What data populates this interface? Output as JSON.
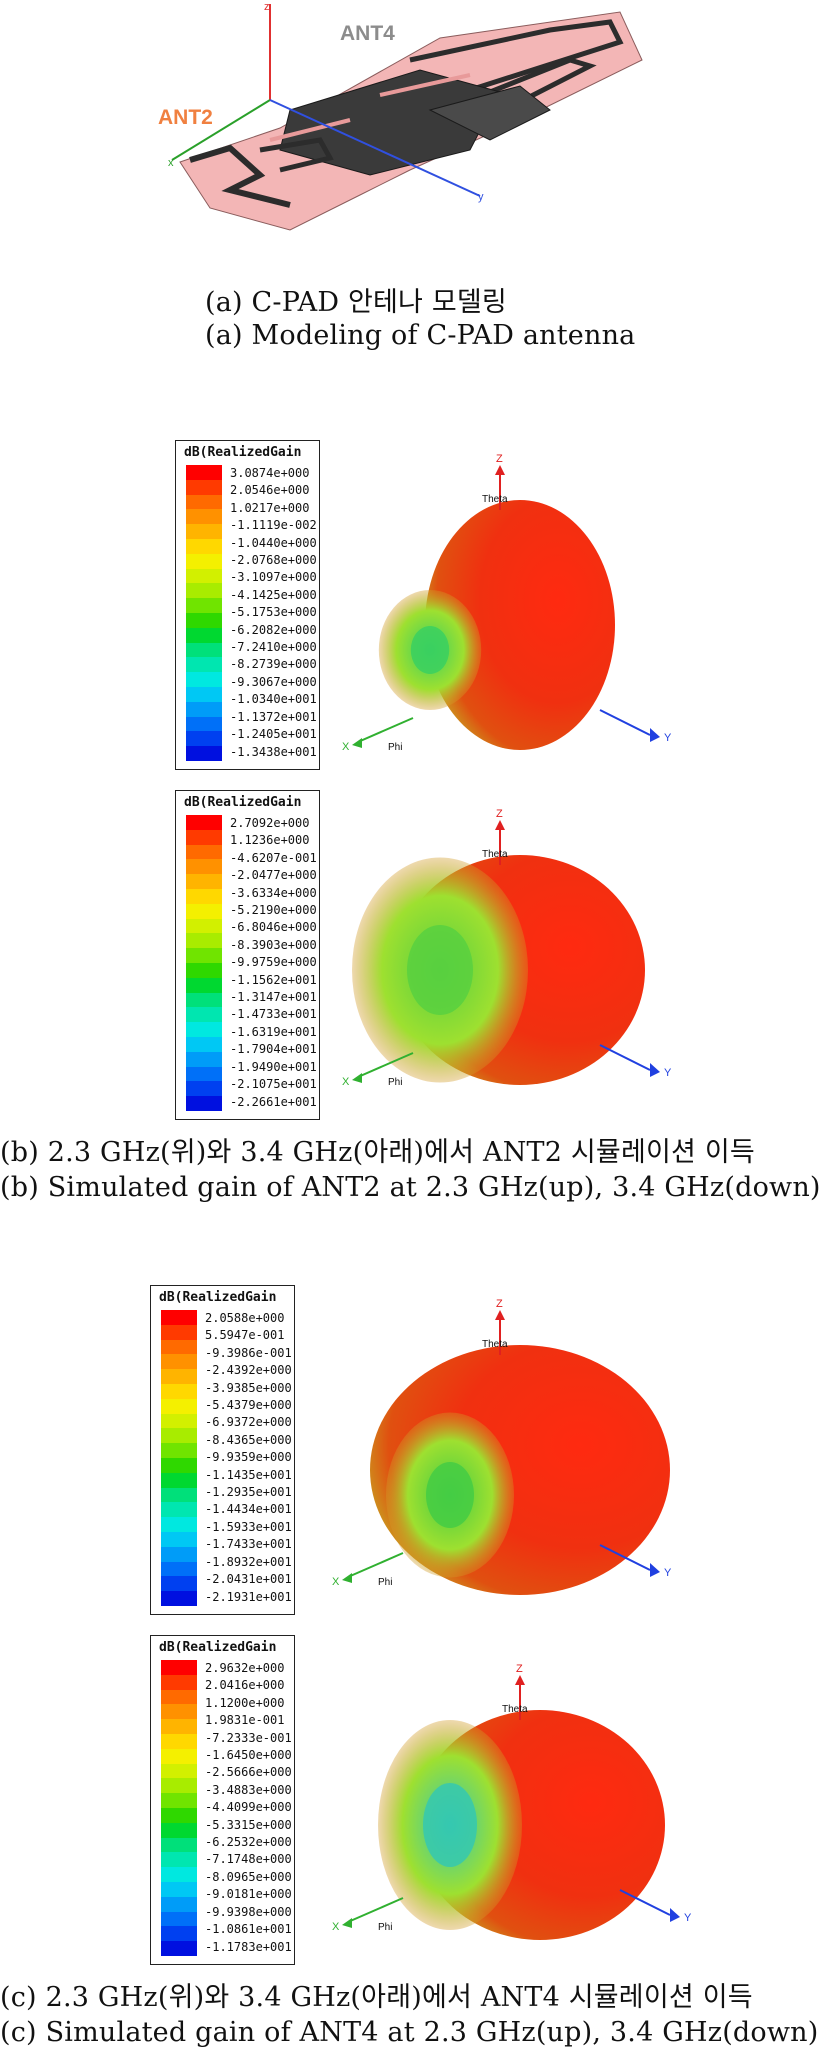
{
  "figure_a": {
    "ant4_label": "ANT4",
    "ant2_label": "ANT2",
    "axis_z": "z",
    "axis_x": "x",
    "axis_y": "y",
    "caption_ko": "(a)  C-PAD  안테나  모델링",
    "caption_en": "(a)  Modeling  of  C-PAD  antenna"
  },
  "legend_colors": [
    "#ff0000",
    "#ff3a00",
    "#ff6a00",
    "#ff9100",
    "#ffb400",
    "#ffd800",
    "#f4f000",
    "#d2f000",
    "#a8ec00",
    "#70e400",
    "#2fd800",
    "#00d830",
    "#00e07a",
    "#00e6b0",
    "#00e8e0",
    "#00c8f4",
    "#009cf8",
    "#0070f8",
    "#0040f0",
    "#0010e0"
  ],
  "panels": [
    {
      "legend_title": "dB(RealizedGain",
      "values": [
        "3.0874e+000",
        "2.0546e+000",
        "1.0217e+000",
        "-1.1119e-002",
        "-1.0440e+000",
        "-2.0768e+000",
        "-3.1097e+000",
        "-4.1425e+000",
        "-5.1753e+000",
        "-6.2082e+000",
        "-7.2410e+000",
        "-8.2739e+000",
        "-9.3067e+000",
        "-1.0340e+001",
        "-1.1372e+001",
        "-1.2405e+001",
        "-1.3438e+001"
      ],
      "axis_z": "Z",
      "axis_y": "Y",
      "axis_x": "X",
      "theta": "Theta",
      "phi": "Phi"
    },
    {
      "legend_title": "dB(RealizedGain",
      "values": [
        "2.7092e+000",
        "1.1236e+000",
        "-4.6207e-001",
        "-2.0477e+000",
        "-3.6334e+000",
        "-5.2190e+000",
        "-6.8046e+000",
        "-8.3903e+000",
        "-9.9759e+000",
        "-1.1562e+001",
        "-1.3147e+001",
        "-1.4733e+001",
        "-1.6319e+001",
        "-1.7904e+001",
        "-1.9490e+001",
        "-2.1075e+001",
        "-2.2661e+001"
      ],
      "axis_z": "Z",
      "axis_y": "Y",
      "axis_x": "X",
      "theta": "Theta",
      "phi": "Phi"
    },
    {
      "legend_title": "dB(RealizedGain",
      "values": [
        "2.0588e+000",
        "5.5947e-001",
        "-9.3986e-001",
        "-2.4392e+000",
        "-3.9385e+000",
        "-5.4379e+000",
        "-6.9372e+000",
        "-8.4365e+000",
        "-9.9359e+000",
        "-1.1435e+001",
        "-1.2935e+001",
        "-1.4434e+001",
        "-1.5933e+001",
        "-1.7433e+001",
        "-1.8932e+001",
        "-2.0431e+001",
        "-2.1931e+001"
      ],
      "axis_z": "Z",
      "axis_y": "Y",
      "axis_x": "X",
      "theta": "Theta",
      "phi": "Phi"
    },
    {
      "legend_title": "dB(RealizedGain",
      "values": [
        "2.9632e+000",
        "2.0416e+000",
        "1.1200e+000",
        "1.9831e-001",
        "-7.2333e-001",
        "-1.6450e+000",
        "-2.5666e+000",
        "-3.4883e+000",
        "-4.4099e+000",
        "-5.3315e+000",
        "-6.2532e+000",
        "-7.1748e+000",
        "-8.0965e+000",
        "-9.0181e+000",
        "-9.9398e+000",
        "-1.0861e+001",
        "-1.1783e+001"
      ],
      "axis_z": "Z",
      "axis_y": "Y",
      "axis_x": "X",
      "theta": "Theta",
      "phi": "Phi"
    }
  ],
  "captions": {
    "b_ko": "(b)  2.3  GHz(위)와  3.4  GHz(아래)에서  ANT2  시뮬레이션  이득",
    "b_en": "(b)  Simulated  gain  of  ANT2  at  2.3  GHz(up),  3.4  GHz(down)",
    "c_ko": "(c)  2.3  GHz(위)와  3.4  GHz(아래)에서  ANT4  시뮬레이션  이득",
    "c_en": "(c)  Simulated  gain  of  ANT4  at  2.3  GHz(up),  3.4  GHz(down)"
  }
}
